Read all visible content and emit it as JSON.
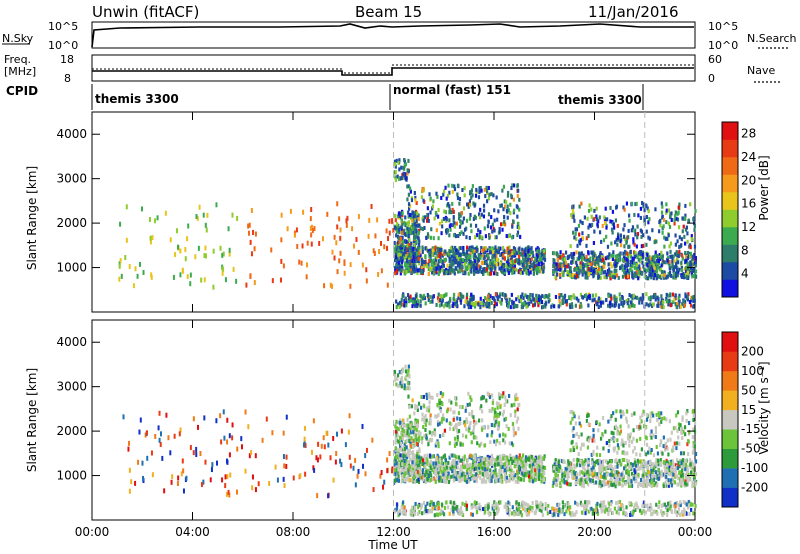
{
  "header": {
    "station": "Unwin (fitACF)",
    "beam": "Beam 15",
    "date": "11/Jan/2016"
  },
  "top_panels": {
    "nsky": {
      "label": "N.Sky",
      "ticks": [
        "10^5",
        "10^0"
      ]
    },
    "nsearch": {
      "label": "N.Search",
      "ticks": [
        "10^5",
        "10^0"
      ]
    },
    "freq": {
      "label_line1": "Freq.",
      "label_line2": "[MHz]",
      "ticks": [
        "18",
        "8"
      ]
    },
    "nave": {
      "label": "Nave",
      "ticks": [
        "60",
        "0"
      ]
    },
    "cpid": {
      "label": "CPID",
      "modes": [
        "themis 3300",
        "normal (fast) 151",
        "themis 3300"
      ]
    }
  },
  "chart_data": [
    {
      "type": "scatter",
      "panel": "power",
      "xlabel": "",
      "ylabel": "Slant Range [km]",
      "xlim": [
        0,
        24
      ],
      "ylim": [
        0,
        4500
      ],
      "yticks": [
        "1000",
        "2000",
        "3000",
        "4000"
      ],
      "colorbar": {
        "label": "Power [dB]",
        "ticks": [
          "4",
          "8",
          "12",
          "16",
          "20",
          "24",
          "28"
        ],
        "colors": [
          "#1010e0",
          "#1d4aa3",
          "#2e7d6a",
          "#3cab4f",
          "#8fcc2e",
          "#e9c51c",
          "#f59a1c",
          "#f06a16",
          "#e83a14",
          "#e01010"
        ]
      },
      "mode_changes_ut": [
        12,
        22
      ]
    },
    {
      "type": "scatter",
      "panel": "velocity",
      "xlabel": "Time UT",
      "ylabel": "Slant Range [km]",
      "xlim": [
        0,
        24
      ],
      "ylim": [
        0,
        4500
      ],
      "yticks": [
        "1000",
        "2000",
        "3000",
        "4000"
      ],
      "xticks": [
        "00:00",
        "04:00",
        "08:00",
        "12:00",
        "16:00",
        "20:00",
        "00:00"
      ],
      "colorbar": {
        "label": "Velocity [m s⁻¹]",
        "ticks": [
          "200",
          "100",
          "50",
          "15",
          "-15",
          "-50",
          "-100",
          "-200"
        ],
        "colors": [
          "#1030c8",
          "#1f6fb3",
          "#2d9b3c",
          "#6cc43a",
          "#c8c8c0",
          "#f0b020",
          "#f07a18",
          "#e83a14",
          "#e01010"
        ]
      },
      "mode_changes_ut": [
        12,
        22
      ]
    }
  ]
}
